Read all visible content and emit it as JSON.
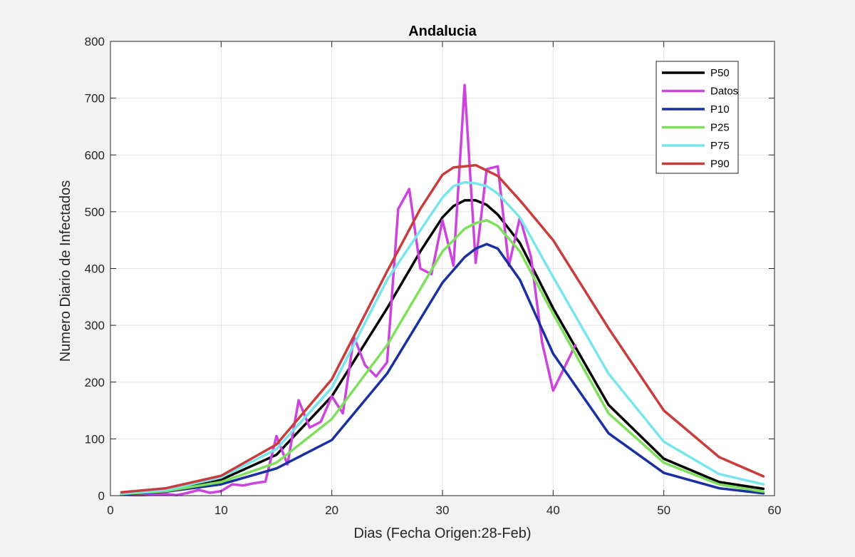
{
  "chart_data": {
    "type": "line",
    "title": "Andalucia",
    "xlabel": "Dias (Fecha Origen:28-Feb)",
    "ylabel": "Numero Diario de Infectados",
    "xlim": [
      0,
      60
    ],
    "ylim": [
      0,
      800
    ],
    "xticks": [
      0,
      10,
      20,
      30,
      40,
      50,
      60
    ],
    "yticks": [
      0,
      100,
      200,
      300,
      400,
      500,
      600,
      700,
      800
    ],
    "grid": true,
    "legend_position": "top-right",
    "series": [
      {
        "name": "P50",
        "color": "#000000",
        "x": [
          1,
          5,
          10,
          15,
          20,
          25,
          28,
          30,
          31,
          32,
          33,
          34,
          35,
          37,
          40,
          45,
          50,
          55,
          59
        ],
        "y": [
          3,
          9,
          28,
          72,
          175,
          330,
          430,
          490,
          510,
          520,
          520,
          512,
          495,
          445,
          330,
          160,
          65,
          24,
          12
        ]
      },
      {
        "name": "Datos",
        "color": "#cc44dd",
        "x": [
          1,
          2,
          3,
          4,
          5,
          6,
          7,
          8,
          9,
          10,
          11,
          12,
          13,
          14,
          15,
          16,
          17,
          18,
          19,
          20,
          21,
          22,
          23,
          24,
          25,
          26,
          27,
          28,
          29,
          30,
          31,
          32,
          33,
          34,
          35,
          36,
          37,
          38,
          39,
          40,
          41,
          42
        ],
        "y": [
          2,
          1,
          1,
          2,
          3,
          1,
          5,
          10,
          5,
          8,
          20,
          18,
          22,
          25,
          105,
          55,
          168,
          120,
          130,
          175,
          145,
          280,
          230,
          210,
          235,
          505,
          540,
          400,
          390,
          485,
          405,
          723,
          410,
          575,
          580,
          405,
          490,
          420,
          270,
          185,
          225,
          265
        ]
      },
      {
        "name": "P10",
        "color": "#1a2fa0",
        "x": [
          1,
          5,
          10,
          15,
          20,
          25,
          30,
          32,
          33,
          34,
          35,
          37,
          40,
          45,
          50,
          55,
          59
        ],
        "y": [
          2,
          7,
          20,
          48,
          98,
          215,
          375,
          420,
          435,
          443,
          435,
          380,
          250,
          110,
          40,
          13,
          4
        ]
      },
      {
        "name": "P25",
        "color": "#7ee05a",
        "x": [
          1,
          5,
          10,
          15,
          20,
          25,
          30,
          32,
          33,
          34,
          35,
          37,
          40,
          45,
          50,
          55,
          59
        ],
        "y": [
          3,
          8,
          24,
          58,
          135,
          265,
          430,
          470,
          480,
          485,
          475,
          430,
          320,
          145,
          58,
          20,
          7
        ]
      },
      {
        "name": "P75",
        "color": "#77e6ec",
        "x": [
          1,
          5,
          10,
          15,
          20,
          25,
          30,
          31,
          32,
          33,
          34,
          35,
          37,
          40,
          45,
          50,
          55,
          59
        ],
        "y": [
          4,
          10,
          32,
          82,
          190,
          380,
          525,
          545,
          552,
          550,
          545,
          532,
          490,
          385,
          215,
          95,
          38,
          20
        ]
      },
      {
        "name": "P90",
        "color": "#c83c3c",
        "x": [
          1,
          5,
          10,
          15,
          20,
          25,
          28,
          30,
          31,
          32,
          33,
          35,
          37,
          40,
          45,
          50,
          55,
          59
        ],
        "y": [
          6,
          13,
          35,
          90,
          205,
          395,
          505,
          565,
          578,
          580,
          582,
          563,
          520,
          450,
          295,
          150,
          68,
          34
        ]
      }
    ]
  }
}
